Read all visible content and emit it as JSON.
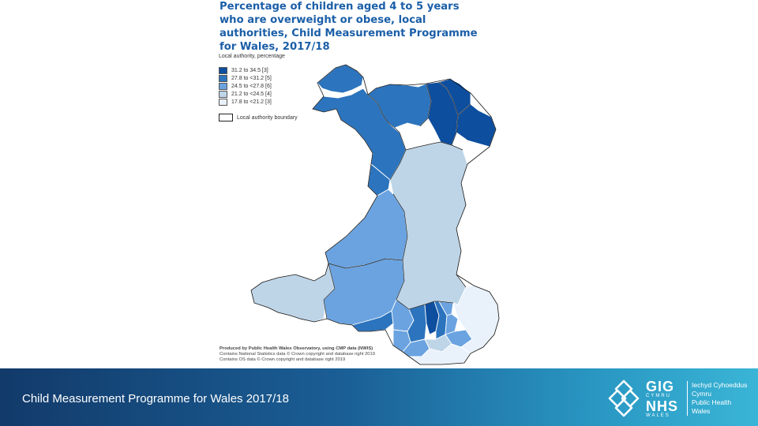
{
  "title_lines": [
    "Percentage of children aged 4 to 5 years",
    "who are overweight or obese, local",
    "authorities, Child Measurement Programme",
    "for Wales, 2017/18"
  ],
  "legend": {
    "heading": "Local authority, percentage",
    "items": [
      {
        "label": "31.2 to 34.5 [3]",
        "color": "#0d4e9e"
      },
      {
        "label": "27.8 to <31.2  [5]",
        "color": "#2c74bd"
      },
      {
        "label": "24.5 to <27.8  [6]",
        "color": "#6aa3e0"
      },
      {
        "label": "21.2 to <24.5  [4]",
        "color": "#bed5e8"
      },
      {
        "label": "17.8 to <21.2  [3]",
        "color": "#e9f1fb"
      }
    ],
    "boundary_label": "Local authority boundary"
  },
  "credits": [
    "Produced by Public Health Wales Observatory, using CMP data (NWIS)",
    "Contains National Statistics data © Crown copyright and database right 2019",
    "Contains OS data © Crown copyright and database right 2019"
  ],
  "footer": {
    "caption": "Child Measurement Programme for Wales 2017/18"
  },
  "logo": {
    "code_top": "GIG",
    "code_top_sub": "CYMRU",
    "code_bottom": "NHS",
    "code_bottom_sub": "WALES",
    "name_lines": [
      "Iechyd Cyhoeddus",
      "Cymru",
      "Public Health",
      "Wales"
    ]
  }
}
